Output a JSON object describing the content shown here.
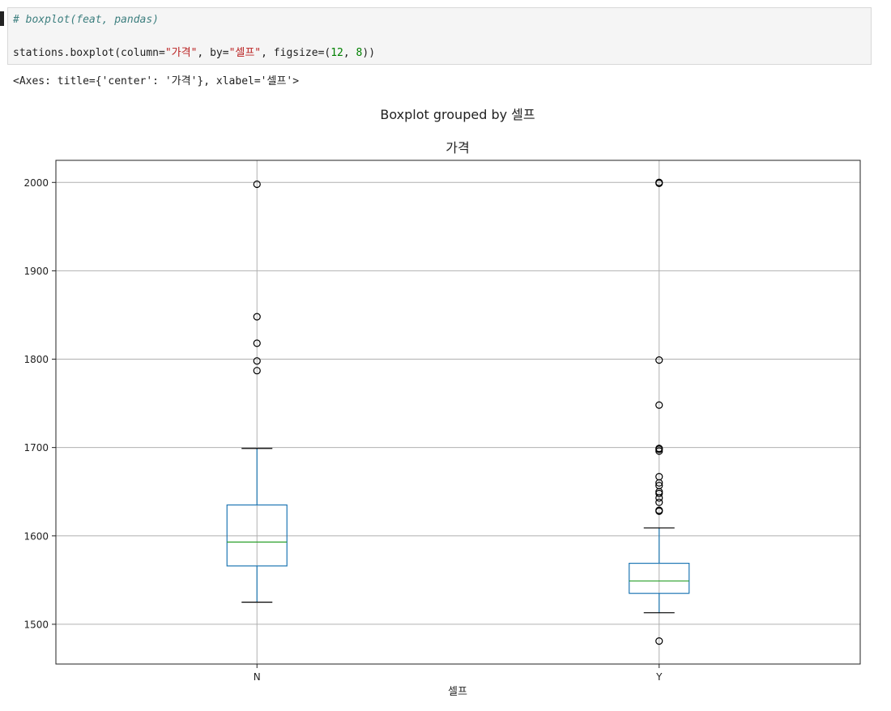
{
  "notebook": {
    "comment": "# boxplot(feat, pandas)",
    "code": {
      "p1": "stations.boxplot(column=",
      "s1": "\"가격\"",
      "p2": ", by=",
      "s2": "\"셀프\"",
      "p3": ", figsize=(",
      "n1": "12",
      "p4": ", ",
      "n2": "8",
      "p5": "))"
    },
    "output": "<Axes: title={'center': '가격'}, xlabel='셀프'>"
  },
  "chart_data": {
    "type": "boxplot",
    "suptitle": "Boxplot grouped by 셀프",
    "title": "가격",
    "xlabel": "셀프",
    "ylabel": "",
    "categories": [
      "N",
      "Y"
    ],
    "ylim": [
      1455,
      2025
    ],
    "yticks": [
      1500,
      1600,
      1700,
      1800,
      1900,
      2000
    ],
    "grid": true,
    "colors": {
      "box": "#1f77b4",
      "median": "#2ca02c",
      "whisker_cap": "#000000",
      "flier": "#000000",
      "grid": "#b0b0b0"
    },
    "boxes": [
      {
        "category": "N",
        "whislo": 1525,
        "q1": 1566,
        "median": 1593,
        "q3": 1635,
        "whishi": 1699,
        "fliers": [
          1787,
          1798,
          1818,
          1848,
          1998
        ]
      },
      {
        "category": "Y",
        "whislo": 1513,
        "q1": 1535,
        "median": 1549,
        "q3": 1569,
        "whishi": 1609,
        "fliers": [
          1481,
          1628,
          1629,
          1638,
          1643,
          1648,
          1650,
          1657,
          1660,
          1667,
          1696,
          1698,
          1699,
          1748,
          1799,
          1999,
          2000
        ]
      }
    ]
  }
}
